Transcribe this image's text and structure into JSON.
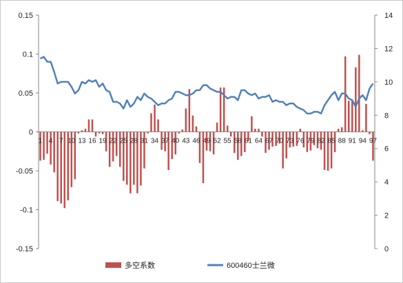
{
  "chart_data": {
    "type": "bar+line",
    "title": "",
    "x_labels": [
      "1",
      "4",
      "7",
      "10",
      "13",
      "16",
      "19",
      "22",
      "25",
      "28",
      "31",
      "34",
      "37",
      "40",
      "43",
      "46",
      "49",
      "52",
      "55",
      "58",
      "61",
      "64",
      "67",
      "70",
      "73",
      "76",
      "79",
      "82",
      "85",
      "88",
      "91",
      "94",
      "97"
    ],
    "x": [
      1,
      2,
      3,
      4,
      5,
      6,
      7,
      8,
      9,
      10,
      11,
      12,
      13,
      14,
      15,
      16,
      17,
      18,
      19,
      20,
      21,
      22,
      23,
      24,
      25,
      26,
      27,
      28,
      29,
      30,
      31,
      32,
      33,
      34,
      35,
      36,
      37,
      38,
      39,
      40,
      41,
      42,
      43,
      44,
      45,
      46,
      47,
      48,
      49,
      50,
      51,
      52,
      53,
      54,
      55,
      56,
      57,
      58,
      59,
      60,
      61,
      62,
      63,
      64,
      65,
      66,
      67,
      68,
      69,
      70,
      71,
      72,
      73,
      74,
      75,
      76,
      77,
      78,
      79,
      80,
      81,
      82,
      83,
      84,
      85,
      86,
      87,
      88,
      89,
      90,
      91,
      92,
      93,
      94,
      95,
      96,
      97
    ],
    "y_left": {
      "ticks": [
        "-0.15",
        "-0.1",
        "-0.05",
        "0",
        "0.05",
        "0.1",
        "0.15"
      ],
      "ylim": [
        -0.15,
        0.15
      ]
    },
    "y_right": {
      "ticks": [
        "0",
        "2",
        "4",
        "6",
        "8",
        "10",
        "12",
        "14"
      ],
      "ylim": [
        0,
        14
      ]
    },
    "series": [
      {
        "name": "多空系数",
        "kind": "bar",
        "axis": "left",
        "color": "#c0504d",
        "values": [
          -0.037,
          -0.036,
          -0.028,
          -0.042,
          -0.052,
          -0.089,
          -0.092,
          -0.098,
          -0.088,
          -0.071,
          -0.061,
          -0.002,
          0.002,
          0.004,
          0.016,
          0.016,
          -0.006,
          -0.002,
          -0.003,
          -0.025,
          -0.045,
          -0.038,
          -0.031,
          -0.045,
          -0.063,
          -0.068,
          -0.079,
          -0.068,
          -0.079,
          -0.069,
          -0.047,
          -0.002,
          0.024,
          0.035,
          0.016,
          -0.023,
          -0.025,
          -0.049,
          -0.035,
          -0.029,
          -0.002,
          0.003,
          0.03,
          0.055,
          0.021,
          0.007,
          -0.04,
          -0.066,
          -0.024,
          -0.025,
          -0.029,
          0.012,
          0.057,
          0.057,
          0.008,
          -0.006,
          -0.027,
          -0.036,
          -0.031,
          -0.026,
          -0.012,
          0.02,
          0.004,
          0.004,
          -0.006,
          -0.027,
          -0.023,
          -0.019,
          -0.018,
          -0.015,
          -0.047,
          -0.034,
          -0.02,
          -0.019,
          -0.018,
          0.004,
          -0.02,
          -0.026,
          -0.024,
          -0.017,
          -0.021,
          -0.023,
          -0.049,
          -0.05,
          -0.047,
          -0.026,
          0.004,
          0.006,
          0.097,
          0.04,
          0.041,
          0.083,
          0.099,
          0.002,
          0.036,
          -0.003,
          -0.037
        ]
      },
      {
        "name": "600460士兰微",
        "kind": "line",
        "axis": "right",
        "color": "#4f81bd",
        "values": [
          11.4,
          11.5,
          11.2,
          11.2,
          10.6,
          9.9,
          10.0,
          10.0,
          10.0,
          9.7,
          9.3,
          9.5,
          10.0,
          9.9,
          10.1,
          10.0,
          10.1,
          9.7,
          9.9,
          9.5,
          9.4,
          8.8,
          8.8,
          8.7,
          8.4,
          8.9,
          8.5,
          8.7,
          9.1,
          8.9,
          9.3,
          9.1,
          9.0,
          8.8,
          8.6,
          8.7,
          8.7,
          8.9,
          9.0,
          9.4,
          9.4,
          9.3,
          9.2,
          9.2,
          9.3,
          9.5,
          9.5,
          9.8,
          9.8,
          9.6,
          9.5,
          9.4,
          9.4,
          9.2,
          9.0,
          9.1,
          9.1,
          8.9,
          9.5,
          9.5,
          9.3,
          9.2,
          9.3,
          9.0,
          9.1,
          9.1,
          9.2,
          8.8,
          8.9,
          8.8,
          8.8,
          8.6,
          8.7,
          8.7,
          8.5,
          8.4,
          8.3,
          8.1,
          8.1,
          8.2,
          8.2,
          8.1,
          8.6,
          8.9,
          9.2,
          9.4,
          8.9,
          9.3,
          9.3,
          9.0,
          8.9,
          8.5,
          9.0,
          9.2,
          8.9,
          9.6,
          9.9
        ]
      }
    ],
    "legend": {
      "position": "bottom"
    },
    "grid": false
  }
}
